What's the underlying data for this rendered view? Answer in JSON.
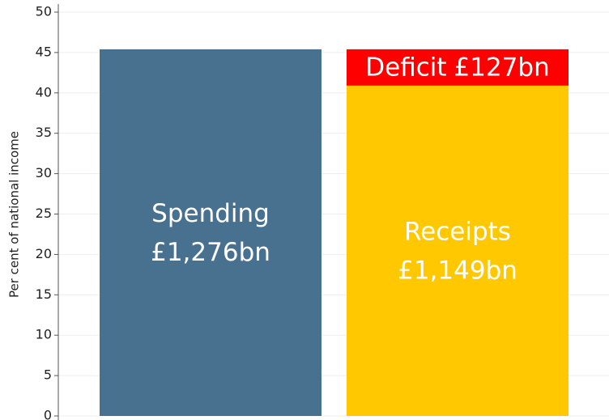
{
  "chart_data": {
    "type": "bar",
    "stacked": true,
    "y_axis_label": "Per cent of national income",
    "categories": [
      null,
      null
    ],
    "series": [
      {
        "name": "Spending",
        "amount": "£1,276bn",
        "color": "#48708f",
        "values": [
          45.4,
          null
        ]
      },
      {
        "name": "Receipts",
        "amount": "£1,149bn",
        "color": "#ffc800",
        "values": [
          null,
          40.9
        ]
      },
      {
        "name": "Deficit",
        "amount": "£127bn",
        "color": "#ff0000",
        "values": [
          null,
          4.5
        ]
      }
    ],
    "ylim": [
      0,
      50
    ],
    "yticks": [
      0,
      5,
      10,
      15,
      20,
      25,
      30,
      35,
      40,
      45,
      50
    ],
    "grid": true
  }
}
